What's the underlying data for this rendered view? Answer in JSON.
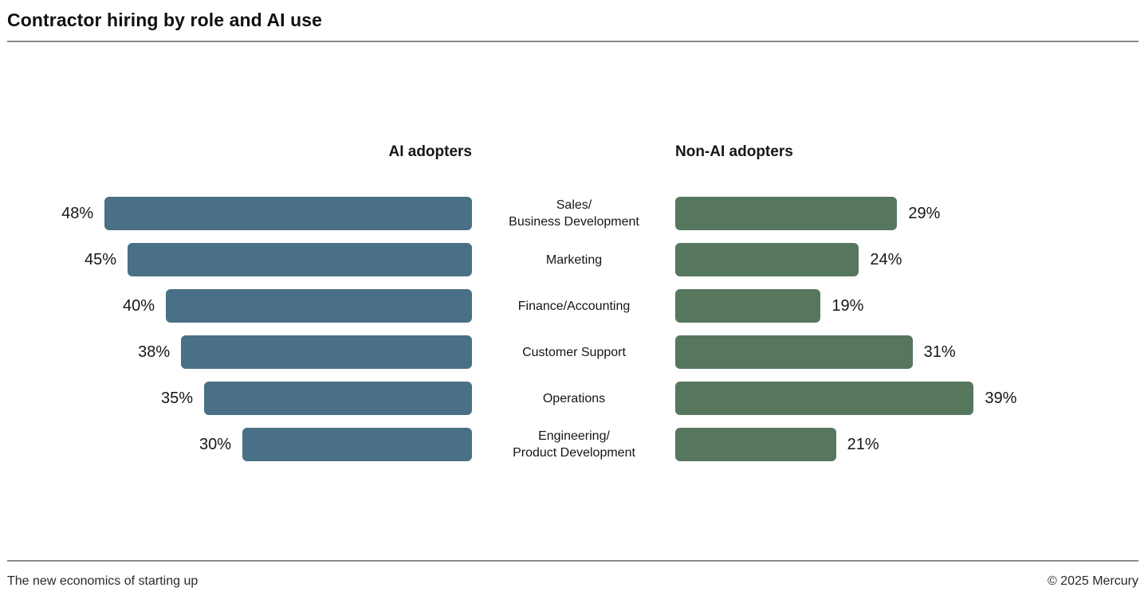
{
  "title": "Contractor hiring by role and AI use",
  "footer": {
    "left": "The new economics of starting up",
    "right": "© 2025 Mercury"
  },
  "colors": {
    "ai_bar": "#497086",
    "non_ai_bar": "#56775E",
    "text": "#1a1a1a",
    "rule": "#8a8a8a",
    "background": "#ffffff"
  },
  "chart_data": {
    "type": "bar",
    "orientation": "horizontal-diverging",
    "title": "Contractor hiring by role and AI use",
    "grid": false,
    "legend_position": "column-headers-above",
    "value_format": "percent",
    "xlim_percent": [
      0,
      50
    ],
    "categories": [
      "Sales/\nBusiness Development",
      "Marketing",
      "Finance/Accounting",
      "Customer Support",
      "Operations",
      "Engineering/\nProduct Development"
    ],
    "series": [
      {
        "name": "AI adopters",
        "side": "left",
        "color": "#497086",
        "values": [
          48,
          45,
          40,
          38,
          35,
          30
        ]
      },
      {
        "name": "Non-AI adopters",
        "side": "right",
        "color": "#56775E",
        "values": [
          29,
          24,
          19,
          31,
          39,
          21
        ]
      }
    ]
  }
}
